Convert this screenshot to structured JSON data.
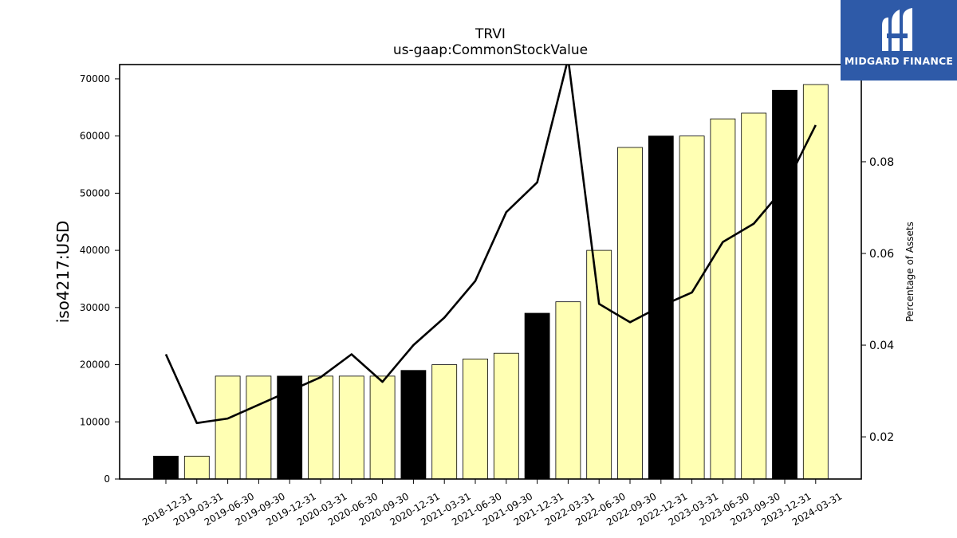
{
  "chart_data": {
    "type": "bar",
    "title": "TRVI",
    "subtitle": "us-gaap:CommonStockValue",
    "ylabel": "iso4217:USD",
    "y2label": "Percentage of Assets",
    "ylim": [
      0,
      72500
    ],
    "y2lim": [
      0.0108,
      0.1012
    ],
    "yticks": [
      0,
      10000,
      20000,
      30000,
      40000,
      50000,
      60000,
      70000
    ],
    "y2ticks": [
      0.02,
      0.04,
      0.06,
      0.08
    ],
    "categories": [
      "2018-12-31",
      "2019-03-31",
      "2019-06-30",
      "2019-09-30",
      "2019-12-31",
      "2020-03-31",
      "2020-06-30",
      "2020-09-30",
      "2020-12-31",
      "2021-03-31",
      "2021-06-30",
      "2021-09-30",
      "2021-12-31",
      "2022-03-31",
      "2022-06-30",
      "2022-09-30",
      "2022-12-31",
      "2023-03-31",
      "2023-06-30",
      "2023-09-30",
      "2023-12-31",
      "2024-03-31"
    ],
    "series": [
      {
        "values": [
          4000,
          4000,
          18000,
          18000,
          18000,
          18000,
          18000,
          18000,
          19000,
          20000,
          21000,
          22000,
          29000,
          31000,
          40000,
          58000,
          60000,
          60000,
          63000,
          64000,
          68000,
          69000
        ],
        "highlight": [
          true,
          false,
          false,
          false,
          true,
          false,
          false,
          false,
          true,
          false,
          false,
          false,
          true,
          false,
          false,
          false,
          true,
          false,
          false,
          false,
          true,
          false
        ]
      },
      {
        "axis": "right",
        "values": [
          0.038,
          0.023,
          0.024,
          0.027,
          0.03,
          0.033,
          0.038,
          0.032,
          0.04,
          0.046,
          0.054,
          0.069,
          0.0755,
          0.1025,
          0.049,
          0.045,
          0.0485,
          0.0515,
          0.0625,
          0.0665,
          0.0745,
          0.088
        ]
      }
    ],
    "colors": {
      "bar_fill": "#ffffb3",
      "bar_highlight": "#000000",
      "line": "#000000"
    },
    "grid": false
  },
  "logo": {
    "text": "MIDGARD FINANCE",
    "background": "#2e5aa8"
  }
}
